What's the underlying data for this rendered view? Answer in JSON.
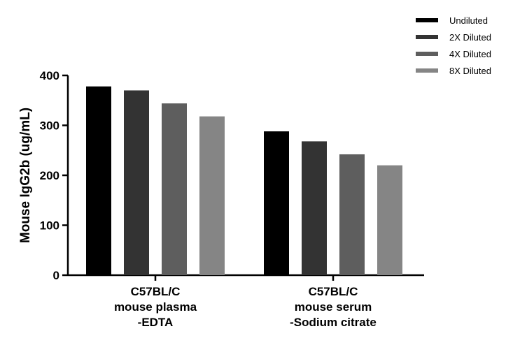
{
  "chart_data": {
    "type": "bar",
    "title": "",
    "xlabel": "",
    "ylabel": "Mouse IgG2b (ug/mL)",
    "ylim": [
      0,
      400
    ],
    "yticks": [
      0,
      100,
      200,
      300,
      400
    ],
    "categories": [
      [
        "C57BL/C",
        "mouse plasma",
        "-EDTA"
      ],
      [
        "C57BL/C",
        "mouse serum",
        "-Sodium citrate"
      ]
    ],
    "series": [
      {
        "name": "Undiluted",
        "color": "#000000",
        "values": [
          378,
          288
        ]
      },
      {
        "name": "2X Diluted",
        "color": "#333333",
        "values": [
          370,
          268
        ]
      },
      {
        "name": "4X Diluted",
        "color": "#5e5e5e",
        "values": [
          344,
          242
        ]
      },
      {
        "name": "8X Diluted",
        "color": "#858585",
        "values": [
          318,
          220
        ]
      }
    ],
    "legend_position": "top-right",
    "grid": false
  }
}
